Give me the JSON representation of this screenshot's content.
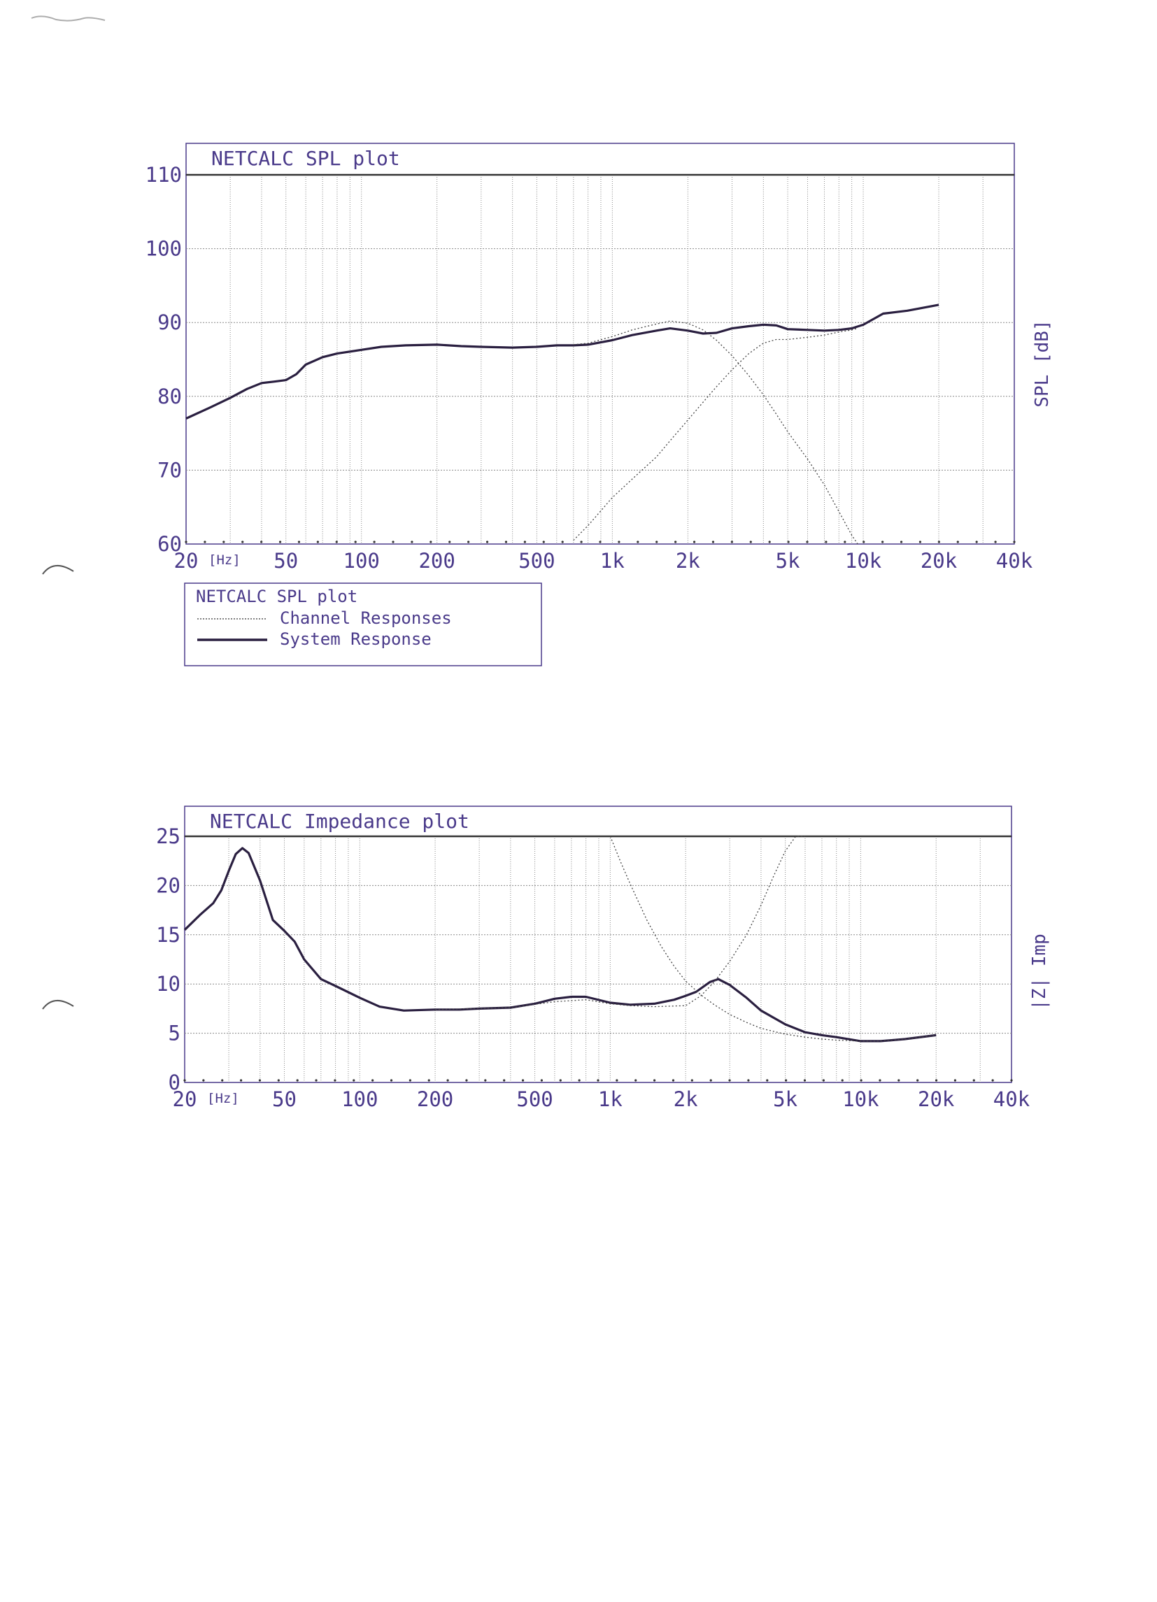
{
  "chart_data": [
    {
      "type": "line",
      "title": "NETCALC   SPL plot",
      "xlabel": "",
      "ylabel": "SPL [dB]",
      "x_unit_label": "[Hz]",
      "x_scale": "log",
      "xlim": [
        20,
        40000
      ],
      "ylim": [
        60,
        110
      ],
      "grid": true,
      "x_ticks": [
        {
          "value": 20,
          "label": "20"
        },
        {
          "value": 50,
          "label": "50"
        },
        {
          "value": 100,
          "label": "100"
        },
        {
          "value": 200,
          "label": "200"
        },
        {
          "value": 500,
          "label": "500"
        },
        {
          "value": 1000,
          "label": "1k"
        },
        {
          "value": 2000,
          "label": "2k"
        },
        {
          "value": 5000,
          "label": "5k"
        },
        {
          "value": 10000,
          "label": "10k"
        },
        {
          "value": 20000,
          "label": "20k"
        },
        {
          "value": 40000,
          "label": "40k"
        }
      ],
      "y_ticks": [
        {
          "value": 60,
          "label": "60"
        },
        {
          "value": 70,
          "label": "70"
        },
        {
          "value": 80,
          "label": "80"
        },
        {
          "value": 90,
          "label": "90"
        },
        {
          "value": 100,
          "label": "100"
        },
        {
          "value": 110,
          "label": "110"
        }
      ],
      "legend": {
        "title": "NETCALC   SPL plot",
        "entries": [
          "Channel Responses",
          "System Response"
        ]
      },
      "series": [
        {
          "name": "System Response",
          "style": "solid",
          "x": [
            20,
            25,
            30,
            35,
            40,
            45,
            50,
            55,
            60,
            70,
            80,
            100,
            120,
            150,
            200,
            250,
            300,
            400,
            500,
            600,
            700,
            800,
            1000,
            1200,
            1500,
            1700,
            2000,
            2300,
            2600,
            3000,
            3500,
            4000,
            4500,
            5000,
            6000,
            7000,
            8000,
            9000,
            10000,
            12000,
            15000,
            20000
          ],
          "y": [
            77,
            78.5,
            79.8,
            81,
            81.8,
            82,
            82.2,
            83,
            84.3,
            85.3,
            85.8,
            86.3,
            86.7,
            86.9,
            87,
            86.8,
            86.7,
            86.6,
            86.7,
            86.9,
            86.9,
            87,
            87.6,
            88.3,
            88.9,
            89.2,
            88.9,
            88.5,
            88.6,
            89.2,
            89.5,
            89.7,
            89.6,
            89.1,
            89,
            88.9,
            89,
            89.2,
            89.7,
            91.2,
            91.6,
            92.4
          ]
        },
        {
          "name": "Channel Responses",
          "style": "dotted",
          "x": [
            700,
            800,
            900,
            1000,
            1200,
            1500,
            1700,
            2000,
            2300,
            2600,
            3000,
            3500,
            4000,
            4500,
            5000,
            6000,
            7000,
            8000,
            9000,
            9500
          ],
          "y": [
            60.5,
            62.5,
            64.5,
            66.3,
            68.8,
            71.8,
            74,
            76.8,
            79.2,
            81.3,
            83.6,
            85.8,
            87.2,
            87.7,
            87.7,
            88,
            88.3,
            88.7,
            89,
            89.2
          ]
        },
        {
          "name": "Channel Responses",
          "style": "dotted",
          "x": [
            700,
            800,
            1000,
            1200,
            1500,
            1700,
            2000,
            2300,
            2600,
            3000,
            3500,
            4000,
            4500,
            5000,
            6000,
            7000,
            8000,
            9000,
            9500
          ],
          "y": [
            87,
            87.2,
            88.1,
            89,
            89.8,
            90.2,
            89.9,
            89,
            87.6,
            85.5,
            82.8,
            80.2,
            77.6,
            75.2,
            71.5,
            68,
            64.4,
            61.2,
            60
          ]
        }
      ]
    },
    {
      "type": "line",
      "title": "NETCALC   Impedance plot",
      "xlabel": "",
      "ylabel": "|Z| Imp",
      "x_unit_label": "[Hz]",
      "x_scale": "log",
      "xlim": [
        20,
        40000
      ],
      "ylim": [
        0,
        25
      ],
      "grid": true,
      "x_ticks": [
        {
          "value": 20,
          "label": "20"
        },
        {
          "value": 50,
          "label": "50"
        },
        {
          "value": 100,
          "label": "100"
        },
        {
          "value": 200,
          "label": "200"
        },
        {
          "value": 500,
          "label": "500"
        },
        {
          "value": 1000,
          "label": "1k"
        },
        {
          "value": 2000,
          "label": "2k"
        },
        {
          "value": 5000,
          "label": "5k"
        },
        {
          "value": 10000,
          "label": "10k"
        },
        {
          "value": 20000,
          "label": "20k"
        },
        {
          "value": 40000,
          "label": "40k"
        }
      ],
      "y_ticks": [
        {
          "value": 0,
          "label": "0"
        },
        {
          "value": 5,
          "label": "5"
        },
        {
          "value": 10,
          "label": "10"
        },
        {
          "value": 15,
          "label": "15"
        },
        {
          "value": 20,
          "label": "20"
        },
        {
          "value": 25,
          "label": "25"
        }
      ],
      "series": [
        {
          "name": "",
          "style": "solid",
          "x": [
            20,
            23,
            26,
            28,
            30,
            32,
            34,
            36,
            40,
            45,
            50,
            55,
            60,
            70,
            80,
            100,
            120,
            150,
            200,
            250,
            300,
            400,
            500,
            600,
            700,
            800,
            1000,
            1200,
            1500,
            1800,
            2000,
            2200,
            2500,
            2700,
            3000,
            3500,
            4000,
            5000,
            6000,
            7000,
            8000,
            10000,
            12000,
            15000,
            20000
          ],
          "y": [
            15.5,
            17,
            18.2,
            19.5,
            21.5,
            23.2,
            23.8,
            23.3,
            20.5,
            16.5,
            15.4,
            14.3,
            12.5,
            10.5,
            9.8,
            8.6,
            7.7,
            7.3,
            7.4,
            7.4,
            7.5,
            7.6,
            8,
            8.5,
            8.7,
            8.7,
            8.1,
            7.9,
            8,
            8.4,
            8.8,
            9.2,
            10.2,
            10.5,
            9.9,
            8.6,
            7.3,
            5.9,
            5.1,
            4.8,
            4.6,
            4.2,
            4.2,
            4.4,
            4.8
          ]
        },
        {
          "name": "",
          "style": "dotted",
          "x": [
            200,
            400,
            600,
            800,
            1000,
            1200,
            1500,
            2000,
            2300,
            2600,
            3000,
            3500,
            4000,
            4500,
            5000,
            5500,
            6000
          ],
          "y": [
            7.4,
            7.6,
            8.2,
            8.4,
            8,
            7.8,
            7.7,
            7.8,
            8.8,
            10.2,
            12.3,
            15,
            18,
            21,
            23.5,
            25,
            25
          ]
        },
        {
          "name": "",
          "style": "dotted",
          "x": [
            1000,
            1100,
            1200,
            1400,
            1600,
            1800,
            2000,
            2300,
            2600,
            3000,
            3500,
            4000,
            5000,
            6000,
            7000,
            8000,
            10000,
            12000,
            15000,
            20000
          ],
          "y": [
            25,
            22.4,
            20.2,
            16.5,
            13.8,
            11.8,
            10.3,
            8.9,
            7.9,
            6.9,
            6.1,
            5.5,
            4.9,
            4.6,
            4.4,
            4.3,
            4.2,
            4.2,
            4.4,
            4.8
          ]
        }
      ]
    }
  ]
}
